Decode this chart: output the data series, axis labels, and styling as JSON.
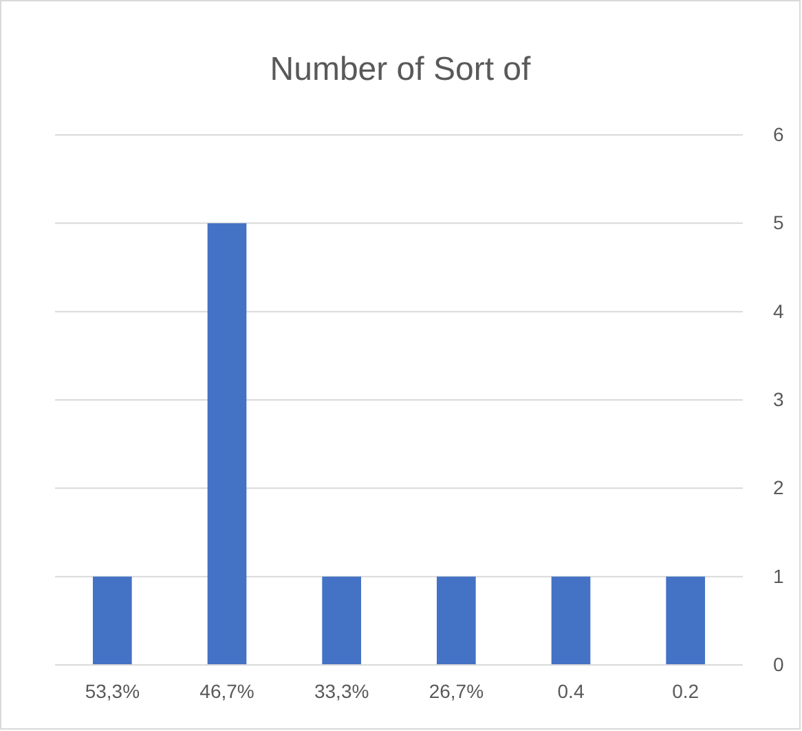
{
  "chart_data": {
    "type": "bar",
    "title": "Number of Sort of",
    "categories": [
      "53,3%",
      "46,7%",
      "33,3%",
      "26,7%",
      "0.4",
      "0.2"
    ],
    "values": [
      1,
      5,
      1,
      1,
      1,
      1
    ],
    "color": "#4472c4",
    "ylim": [
      0,
      6
    ],
    "yticks": [
      0,
      1,
      2,
      3,
      4,
      5,
      6
    ],
    "grid": "y"
  }
}
